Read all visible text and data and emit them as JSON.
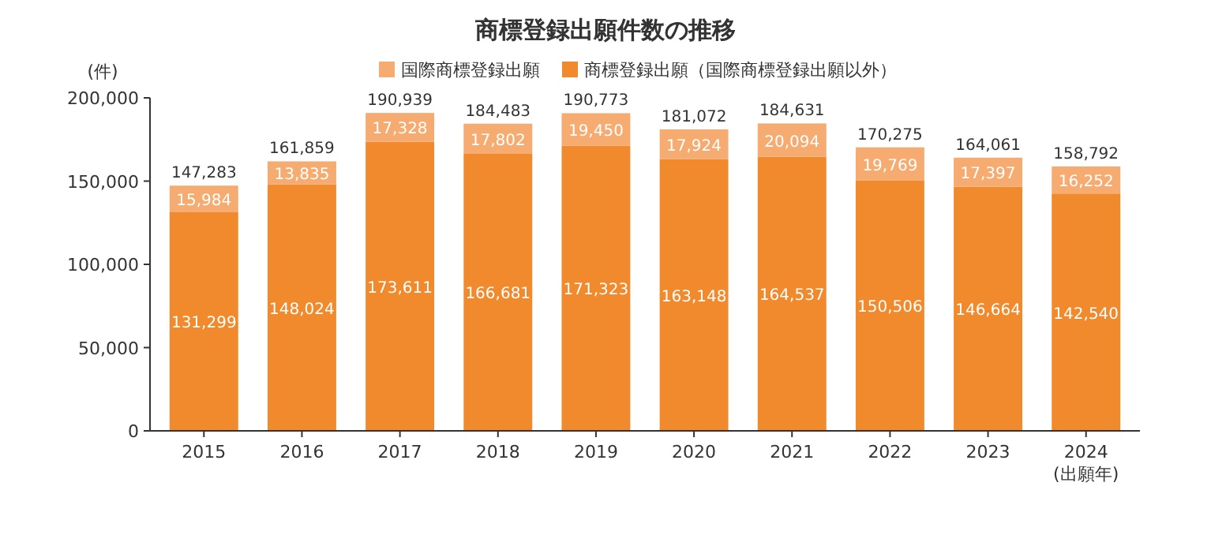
{
  "chart_data": {
    "type": "bar",
    "title": "商標登録出願件数の推移",
    "ylabel": "(件)",
    "xlabel": "(出願年)",
    "categories": [
      "2015",
      "2016",
      "2017",
      "2018",
      "2019",
      "2020",
      "2021",
      "2022",
      "2023",
      "2024"
    ],
    "series": [
      {
        "name": "商標登録出願（国際商標登録出願以外）",
        "color": "#f08a2c",
        "values": [
          131299,
          148024,
          173611,
          166681,
          171323,
          163148,
          164537,
          150506,
          146664,
          142540
        ],
        "value_labels": [
          "131,299",
          "148,024",
          "173,611",
          "166,681",
          "171,323",
          "163,148",
          "164,537",
          "150,506",
          "146,664",
          "142,540"
        ]
      },
      {
        "name": "国際商標登録出願",
        "color": "#f6ab70",
        "values": [
          15984,
          13835,
          17328,
          17802,
          19450,
          17924,
          20094,
          19769,
          17397,
          16252
        ],
        "value_labels": [
          "15,984",
          "13,835",
          "17,328",
          "17,802",
          "19,450",
          "17,924",
          "20,094",
          "19,769",
          "17,397",
          "16,252"
        ]
      }
    ],
    "stacked": true,
    "totals": [
      "147,283",
      "161,859",
      "190,939",
      "184,483",
      "190,773",
      "181,072",
      "184,631",
      "170,275",
      "164,061",
      "158,792"
    ],
    "ylim": [
      0,
      200000
    ],
    "yticks": [
      {
        "value": 0,
        "label": "0"
      },
      {
        "value": 50000,
        "label": "50,000"
      },
      {
        "value": 100000,
        "label": "100,000"
      },
      {
        "value": 150000,
        "label": "150,000"
      },
      {
        "value": 200000,
        "label": "200,000"
      }
    ],
    "legend": "top",
    "grid": false
  }
}
